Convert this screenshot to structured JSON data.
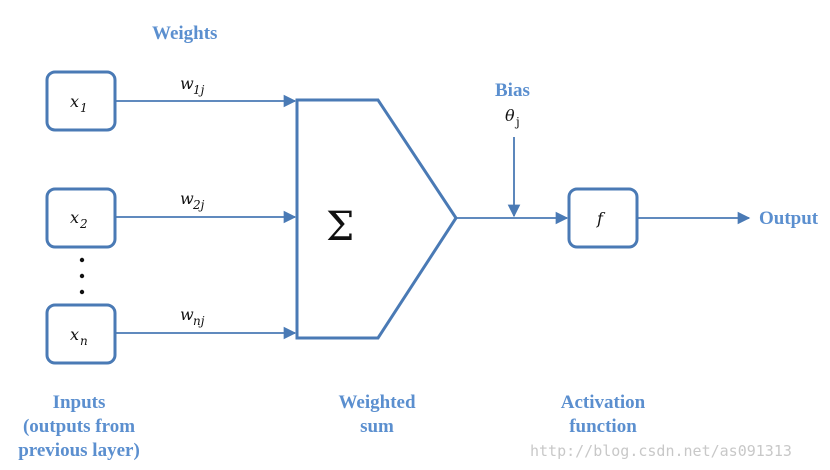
{
  "labels": {
    "weights": "Weights",
    "bias": "Bias",
    "theta": "θ",
    "theta_sub": "j",
    "output": "Output",
    "sigma": "Σ",
    "activation_fn": "f",
    "inputs_line1": "Inputs",
    "inputs_line2": "(outputs from",
    "inputs_line3": "previous layer)",
    "weighted_line1": "Weighted",
    "weighted_line2": "sum",
    "activation_line1": "Activation",
    "activation_line2": "function",
    "ellipsis_dots": "⋮"
  },
  "inputs": [
    {
      "var": "x",
      "sub": "1"
    },
    {
      "var": "x",
      "sub": "2"
    },
    {
      "var": "x",
      "sub": "n"
    }
  ],
  "weights": [
    {
      "var": "w",
      "sub": "1j"
    },
    {
      "var": "w",
      "sub": "2j"
    },
    {
      "var": "w",
      "sub": "nj"
    }
  ],
  "watermark": "http://blog.csdn.net/as091313",
  "colors": {
    "stroke": "#4a7ab5",
    "label": "#5b8fcf"
  }
}
